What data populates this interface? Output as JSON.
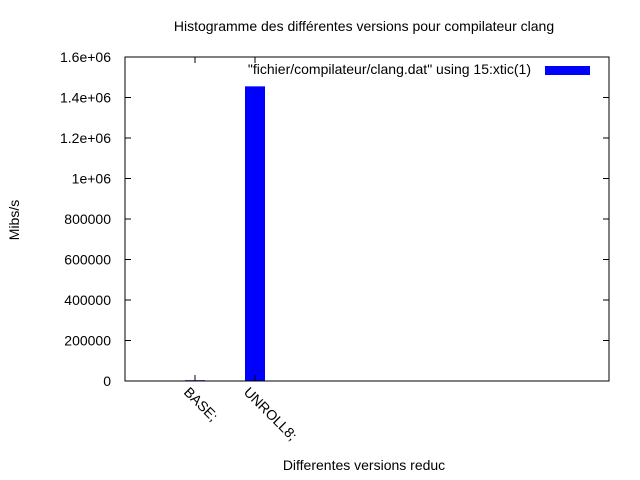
{
  "chart_data": {
    "type": "bar",
    "title": "Histogramme des différentes versions pour compilateur clang",
    "xlabel": "Differentes versions reduc",
    "ylabel": "Mibs/s",
    "ylim": [
      0,
      1600000
    ],
    "yticks": [
      {
        "value": 0,
        "label": "0"
      },
      {
        "value": 200000,
        "label": "200000"
      },
      {
        "value": 400000,
        "label": "400000"
      },
      {
        "value": 600000,
        "label": "600000"
      },
      {
        "value": 800000,
        "label": "800000"
      },
      {
        "value": 1000000,
        "label": "1e+06"
      },
      {
        "value": 1200000,
        "label": "1.2e+06"
      },
      {
        "value": 1400000,
        "label": "1.4e+06"
      },
      {
        "value": 1600000,
        "label": "1.6e+06"
      }
    ],
    "categories": [
      "BASE;",
      "UNROLL8;"
    ],
    "series": [
      {
        "name": "\"fichier/compilateur/clang.dat\"  using 15:xtic(1)",
        "values": [
          4000,
          1455000
        ],
        "color": "#0000ff"
      }
    ],
    "legend_position": "top-right",
    "grid": false
  }
}
